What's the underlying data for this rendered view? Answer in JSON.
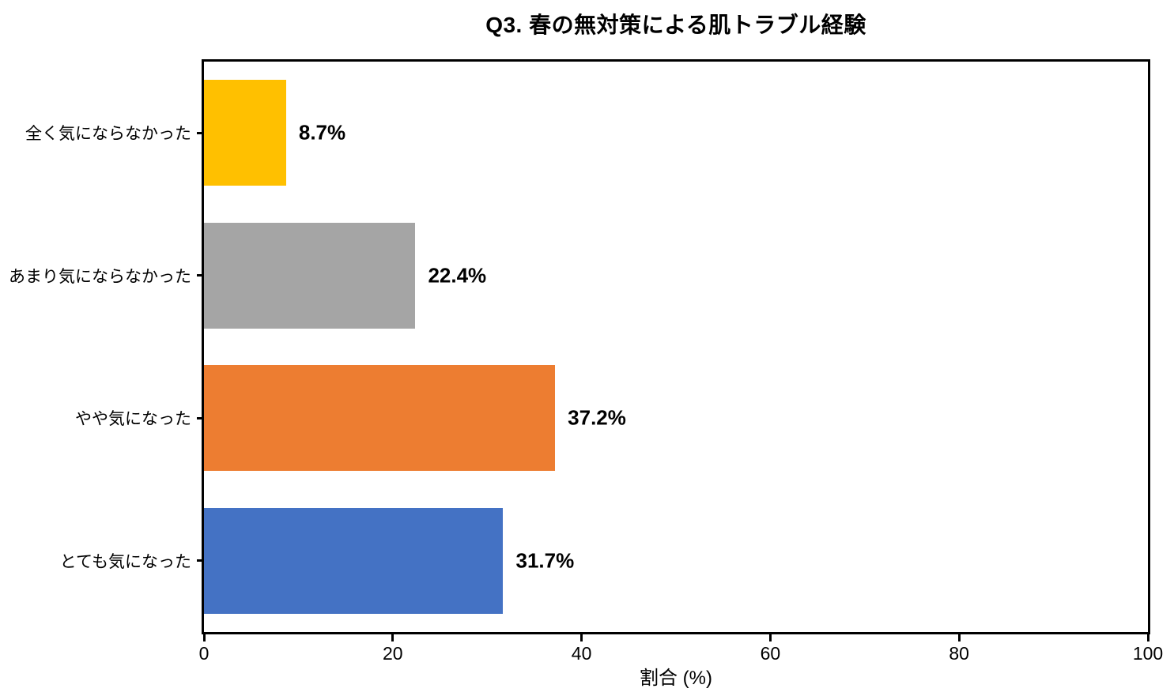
{
  "title": "Q3. 春の無対策による肌トラブル経験",
  "chart_data": {
    "type": "bar",
    "orientation": "horizontal",
    "title": "Q3. 春の無対策による肌トラブル経験",
    "categories": [
      "全く気にならなかった",
      "あまり気にならなかった",
      "やや気になった",
      "とても気になった"
    ],
    "values": [
      8.7,
      22.4,
      37.2,
      31.7
    ],
    "value_labels": [
      "8.7%",
      "22.4%",
      "37.2%",
      "31.7%"
    ],
    "bar_colors": [
      "#FFC000",
      "#A5A5A5",
      "#ED7D31",
      "#4472C4"
    ],
    "xlabel": "割合 (%)",
    "ylabel": "",
    "xlim": [
      0,
      100
    ],
    "xticks": [
      0,
      20,
      40,
      60,
      80,
      100
    ],
    "xtick_labels": [
      "0",
      "20",
      "40",
      "60",
      "80",
      "100"
    ],
    "grid": false,
    "legend": null,
    "axis_color": "#000000",
    "background_color": "#ffffff"
  }
}
